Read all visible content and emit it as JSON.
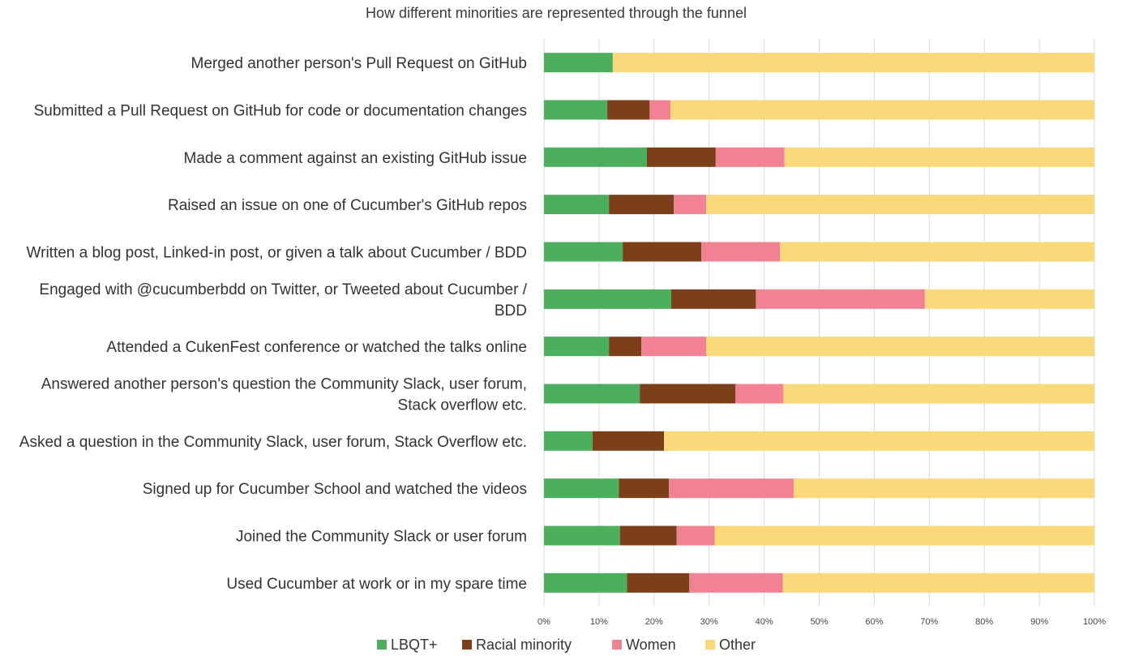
{
  "chart_data": {
    "type": "bar",
    "orientation": "horizontal",
    "stacking": "percent",
    "title": "How different minorities are represented through the funnel",
    "xlabel": "",
    "ylabel": "",
    "xlim": [
      0,
      100
    ],
    "x_ticks": [
      "0%",
      "10%",
      "20%",
      "30%",
      "40%",
      "50%",
      "60%",
      "70%",
      "80%",
      "90%",
      "100%"
    ],
    "grid": true,
    "legend_position": "bottom",
    "categories": [
      [
        "Merged another person's Pull Request on GitHub"
      ],
      [
        "Submitted a Pull Request on GitHub for code or documentation changes"
      ],
      [
        "Made a comment against an existing GitHub issue"
      ],
      [
        "Raised an issue on one of Cucumber's GitHub repos"
      ],
      [
        "Written a blog post, Linked-in post, or given a talk about Cucumber / BDD"
      ],
      [
        "Engaged with @cucumberbdd on Twitter, or Tweeted about Cucumber /",
        "BDD"
      ],
      [
        "Attended a CukenFest conference or watched the talks online"
      ],
      [
        "Answered another person's question the Community Slack, user forum,",
        "Stack overflow etc."
      ],
      [
        "Asked a question in the Community Slack, user forum, Stack Overflow etc."
      ],
      [
        "Signed up for Cucumber School and watched the videos"
      ],
      [
        "Joined the Community Slack or user forum"
      ],
      [
        "Used Cucumber at work or in my spare time"
      ]
    ],
    "series": [
      {
        "name": "LBQT+",
        "color": "#4caf5e",
        "values": [
          12.5,
          11.5,
          18.7,
          11.8,
          14.3,
          23.1,
          11.8,
          17.4,
          8.8,
          13.6,
          13.8,
          15.1
        ]
      },
      {
        "name": "Racial minority",
        "color": "#7b3f1a",
        "values": [
          0,
          7.7,
          12.5,
          11.8,
          14.3,
          15.4,
          5.9,
          17.4,
          13.0,
          9.1,
          10.3,
          11.3
        ]
      },
      {
        "name": "Women",
        "color": "#f08294",
        "values": [
          0,
          3.8,
          12.5,
          5.9,
          14.3,
          30.7,
          11.8,
          8.7,
          0,
          22.7,
          6.9,
          17.0
        ]
      },
      {
        "name": "Other",
        "color": "#f9d97a",
        "values": [
          87.5,
          77.0,
          56.3,
          70.5,
          57.1,
          30.8,
          70.5,
          56.5,
          78.2,
          54.6,
          69.0,
          56.6
        ]
      }
    ]
  }
}
